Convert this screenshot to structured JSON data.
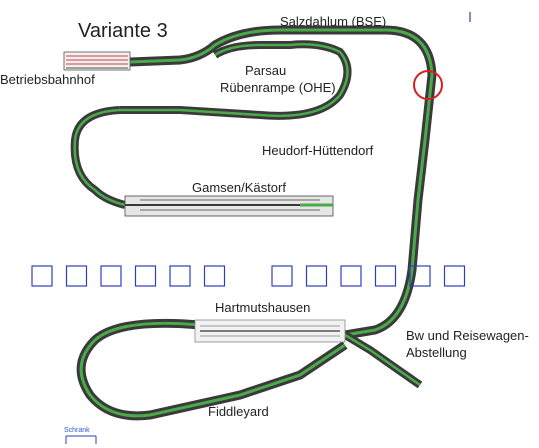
{
  "diagram": {
    "title": "Variante 3",
    "labels": {
      "salzdahlum": "Salzdahlum (BSE)",
      "parsau": "Parsau",
      "ruebenrampe": "Rübenrampe (OHE)",
      "betriebsbahnhof": "Betriebsbahnhof",
      "heudorf": "Heudorf-Hüttendorf",
      "gamsen": "Gamsen/Kästorf",
      "hartmutshausen": "Hartmutshausen",
      "bw_line1": "Bw und Reisewagen-",
      "bw_line2": "Abstellung",
      "fiddleyard": "Fiddleyard",
      "schrank": "Schrank"
    },
    "colors": {
      "track": "#3a3a3a",
      "track_green": "#3a9a3a",
      "box_stroke": "#2b3fbf",
      "marker": "#d62020"
    },
    "boxes_left_count": 6,
    "boxes_right_count": 6
  }
}
